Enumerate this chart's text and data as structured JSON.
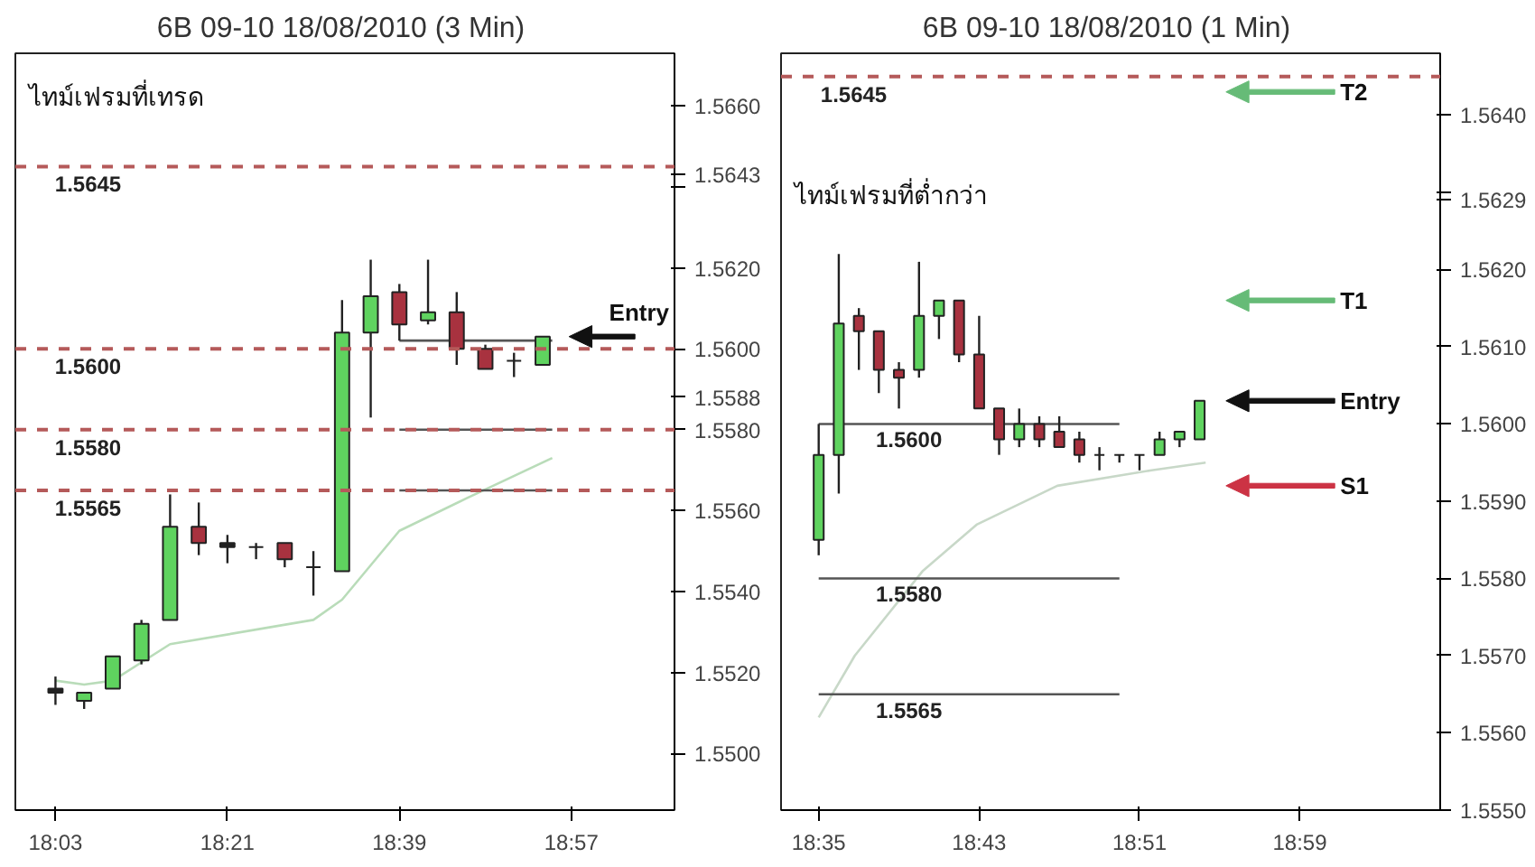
{
  "chart_data": [
    {
      "type": "candlestick",
      "title": "6B 09-10  18/08/2010 (3 Min)",
      "x": [
        18.05,
        18.1,
        18.15,
        18.2,
        18.25,
        18.3,
        18.35,
        18.4,
        18.45,
        18.5,
        18.55,
        18.6,
        18.65,
        18.7,
        18.75,
        18.8,
        18.85,
        18.9
      ],
      "ohlc": [
        [
          1.5516,
          1.5519,
          1.5512,
          1.5515
        ],
        [
          1.5513,
          1.5515,
          1.5511,
          1.5515
        ],
        [
          1.5516,
          1.5524,
          1.5516,
          1.5524
        ],
        [
          1.5523,
          1.5533,
          1.5522,
          1.5532
        ],
        [
          1.5533,
          1.5564,
          1.5533,
          1.5556
        ],
        [
          1.5556,
          1.5562,
          1.5549,
          1.5552
        ],
        [
          1.5552,
          1.5554,
          1.5547,
          1.5551
        ],
        [
          1.5551,
          1.5552,
          1.5548,
          1.5551
        ],
        [
          1.5552,
          1.5552,
          1.5546,
          1.5548
        ],
        [
          1.5546,
          1.555,
          1.5539,
          1.5546
        ],
        [
          1.5545,
          1.5612,
          1.5545,
          1.5604
        ],
        [
          1.5604,
          1.5622,
          1.5583,
          1.5613
        ],
        [
          1.5614,
          1.5616,
          1.5602,
          1.5606
        ],
        [
          1.5607,
          1.5622,
          1.5606,
          1.5609
        ],
        [
          1.5609,
          1.5614,
          1.5596,
          1.56
        ],
        [
          1.56,
          1.5601,
          1.5595,
          1.5595
        ],
        [
          1.5597,
          1.5599,
          1.5593,
          1.5597
        ],
        [
          1.5596,
          1.5603,
          1.5596,
          1.5603
        ]
      ],
      "colors": [
        "#222222",
        "#5fd35f",
        "#5fd35f",
        "#5fd35f",
        "#5fd35f",
        "#a8323f",
        "#222222",
        "#222222",
        "#a8323f",
        "#222222",
        "#5fd35f",
        "#5fd35f",
        "#a8323f",
        "#5fd35f",
        "#a8323f",
        "#a8323f",
        "#222222",
        "#5fd35f"
      ],
      "series": [
        {
          "type": "line",
          "color": "#b9dcb9",
          "x": [
            18.05,
            18.1,
            18.15,
            18.25,
            18.5,
            18.55,
            18.65,
            18.7667,
            18.9167
          ],
          "values": [
            1.5518,
            1.5517,
            1.5518,
            1.5527,
            1.5533,
            1.5538,
            1.5555,
            1.5563,
            1.5573
          ]
        },
        {
          "type": "line",
          "color": "#555555",
          "x": [
            18.65,
            18.9167
          ],
          "values": [
            1.5602,
            1.5602
          ]
        },
        {
          "type": "line",
          "color": "#555555",
          "x": [
            18.65,
            18.9167
          ],
          "values": [
            1.558,
            1.558
          ]
        },
        {
          "type": "line",
          "color": "#555555",
          "x": [
            18.65,
            18.9167
          ],
          "values": [
            1.5565,
            1.5565
          ]
        }
      ],
      "ref_lines": [
        {
          "axis": "y",
          "value": 1.5645,
          "label": "1.5645",
          "color": "#b55a5a",
          "line_style": "dashed"
        },
        {
          "axis": "y",
          "value": 1.56,
          "label": "1.5600",
          "color": "#b55a5a",
          "line_style": "dashed"
        },
        {
          "axis": "y",
          "value": 1.558,
          "label": "1.5580",
          "color": "#b55a5a",
          "line_style": "dashed"
        },
        {
          "axis": "y",
          "value": 1.5565,
          "label": "1.5565",
          "color": "#b55a5a",
          "line_style": "dashed"
        },
        {
          "axis": "y",
          "value": 1.5603,
          "label": "Entry",
          "color": "#111111"
        }
      ],
      "annotations": [
        "ไทม์เฟรมที่เทรด"
      ],
      "xlim": [
        17.98,
        19.13
      ],
      "ylim": [
        1.5486,
        1.5673
      ],
      "xticks": [
        {
          "value": 18.05,
          "label": "18:03"
        },
        {
          "value": 18.35,
          "label": "18:21"
        },
        {
          "value": 18.65,
          "label": "18:39"
        },
        {
          "value": 18.95,
          "label": "18:57"
        }
      ],
      "yticks": [
        {
          "value": 1.55,
          "label": "1.5500"
        },
        {
          "value": 1.552,
          "label": "1.5520"
        },
        {
          "value": 1.554,
          "label": "1.5540"
        },
        {
          "value": 1.556,
          "label": "1.5560"
        },
        {
          "value": 1.558,
          "label": "1.5580"
        },
        {
          "value": 1.5588,
          "label": "1.5588"
        },
        {
          "value": 1.56,
          "label": "1.5600"
        },
        {
          "value": 1.562,
          "label": "1.5620"
        },
        {
          "value": 1.564,
          "label": null
        },
        {
          "value": 1.5643,
          "label": "1.5643"
        },
        {
          "value": 1.566,
          "label": "1.5660"
        }
      ]
    },
    {
      "type": "candlestick",
      "title": "6B 09-10  18/08/2010 (1 Min)",
      "x": [
        18.5833,
        18.6,
        18.6167,
        18.6333,
        18.65,
        18.6667,
        18.6833,
        18.7,
        18.7167,
        18.7333,
        18.75,
        18.7667,
        18.7833,
        18.8,
        18.8167,
        18.8333,
        18.85,
        18.8667,
        18.8833,
        18.9
      ],
      "ohlc": [
        [
          1.5585,
          1.56,
          1.5583,
          1.5596
        ],
        [
          1.5596,
          1.5622,
          1.5591,
          1.5613
        ],
        [
          1.5614,
          1.5615,
          1.5607,
          1.5612
        ],
        [
          1.5612,
          1.5612,
          1.5604,
          1.5607
        ],
        [
          1.5607,
          1.5608,
          1.5602,
          1.5606
        ],
        [
          1.5607,
          1.5621,
          1.5606,
          1.5614
        ],
        [
          1.5614,
          1.5616,
          1.5611,
          1.5616
        ],
        [
          1.5616,
          1.5616,
          1.5608,
          1.5609
        ],
        [
          1.5609,
          1.5614,
          1.5602,
          1.5602
        ],
        [
          1.5602,
          1.5602,
          1.5596,
          1.5598
        ],
        [
          1.5598,
          1.5602,
          1.5597,
          1.56
        ],
        [
          1.56,
          1.5601,
          1.5597,
          1.5598
        ],
        [
          1.5599,
          1.5601,
          1.5597,
          1.5597
        ],
        [
          1.5598,
          1.5599,
          1.5595,
          1.5596
        ],
        [
          1.5596,
          1.5597,
          1.5594,
          1.5596
        ],
        [
          1.5596,
          1.5596,
          1.5595,
          1.5596
        ],
        [
          1.5596,
          1.5596,
          1.5594,
          1.5596
        ],
        [
          1.5596,
          1.5599,
          1.5596,
          1.5598
        ],
        [
          1.5598,
          1.5599,
          1.5597,
          1.5599
        ],
        [
          1.5598,
          1.5603,
          1.5598,
          1.5603
        ]
      ],
      "colors": [
        "#5fd35f",
        "#5fd35f",
        "#a8323f",
        "#a8323f",
        "#a8323f",
        "#5fd35f",
        "#5fd35f",
        "#a8323f",
        "#a8323f",
        "#a8323f",
        "#5fd35f",
        "#a8323f",
        "#a8323f",
        "#a8323f",
        "#222222",
        "#222222",
        "#222222",
        "#5fd35f",
        "#5fd35f",
        "#5fd35f"
      ],
      "series": [
        {
          "type": "line",
          "color": "#c8d8c8",
          "x": [
            18.5833,
            18.6133,
            18.67,
            18.715,
            18.7817,
            18.86,
            18.905
          ],
          "values": [
            1.5562,
            1.557,
            1.5581,
            1.5587,
            1.5592,
            1.5594,
            1.5595
          ]
        },
        {
          "type": "line",
          "color": "#555555",
          "name": "1.5600",
          "x": [
            18.5833,
            18.8333
          ],
          "values": [
            1.56,
            1.56
          ]
        },
        {
          "type": "line",
          "color": "#555555",
          "name": "1.5580",
          "x": [
            18.5833,
            18.8333
          ],
          "values": [
            1.558,
            1.558
          ]
        },
        {
          "type": "line",
          "color": "#555555",
          "name": "1.5565",
          "x": [
            18.5833,
            18.8333
          ],
          "values": [
            1.5565,
            1.5565
          ]
        }
      ],
      "ref_lines": [
        {
          "axis": "y",
          "value": 1.5645,
          "label": "1.5645",
          "color": "#b55a5a",
          "line_style": "dashed"
        },
        {
          "axis": "y",
          "value": 1.5643,
          "label": "T2",
          "color": "#66bb77"
        },
        {
          "axis": "y",
          "value": 1.5616,
          "label": "T1",
          "color": "#66bb77"
        },
        {
          "axis": "y",
          "value": 1.5603,
          "label": "Entry",
          "color": "#111111"
        },
        {
          "axis": "y",
          "value": 1.5592,
          "label": "S1",
          "color": "#cc3344"
        }
      ],
      "annotations": [
        "ไทม์เฟรมที่ต่ำกว่า"
      ],
      "xlim": [
        18.552,
        19.1
      ],
      "ylim": [
        1.555,
        1.5648
      ],
      "xticks": [
        {
          "value": 18.5833,
          "label": "18:35"
        },
        {
          "value": 18.7167,
          "label": "18:43"
        },
        {
          "value": 18.85,
          "label": "18:51"
        },
        {
          "value": 18.9833,
          "label": "18:59"
        }
      ],
      "yticks": [
        {
          "value": 1.555,
          "label": "1.5550"
        },
        {
          "value": 1.556,
          "label": "1.5560"
        },
        {
          "value": 1.557,
          "label": "1.5570"
        },
        {
          "value": 1.558,
          "label": "1.5580"
        },
        {
          "value": 1.559,
          "label": "1.5590"
        },
        {
          "value": 1.56,
          "label": "1.5600"
        },
        {
          "value": 1.561,
          "label": "1.5610"
        },
        {
          "value": 1.562,
          "label": "1.5620"
        },
        {
          "value": 1.5629,
          "label": "1.5629"
        },
        {
          "value": 1.563,
          "label": null
        },
        {
          "value": 1.564,
          "label": "1.5640"
        }
      ]
    }
  ]
}
